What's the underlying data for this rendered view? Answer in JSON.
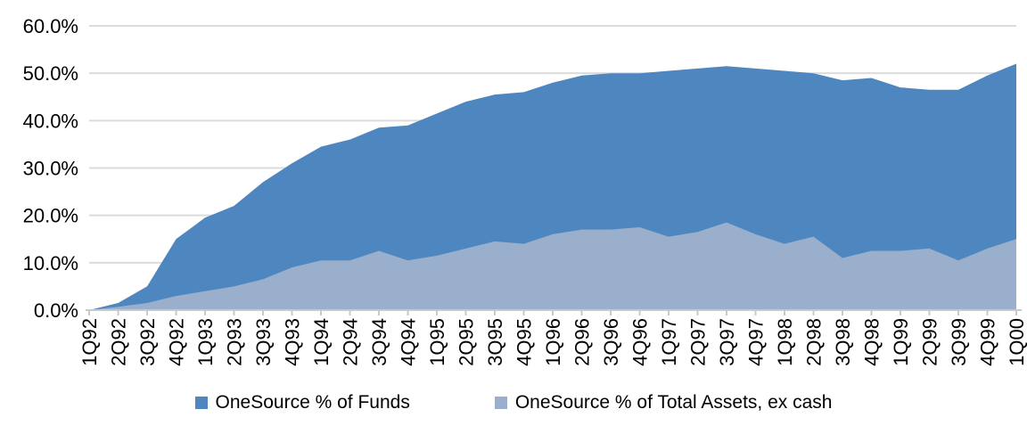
{
  "chart_data": {
    "type": "area",
    "categories": [
      "1Q92",
      "2Q92",
      "3Q92",
      "4Q92",
      "1Q93",
      "2Q93",
      "3Q93",
      "4Q93",
      "1Q94",
      "2Q94",
      "3Q94",
      "4Q94",
      "1Q95",
      "2Q95",
      "3Q95",
      "4Q95",
      "1Q96",
      "2Q96",
      "3Q96",
      "4Q96",
      "1Q97",
      "2Q97",
      "3Q97",
      "4Q97",
      "1Q98",
      "2Q98",
      "3Q98",
      "4Q98",
      "1Q99",
      "2Q99",
      "3Q99",
      "4Q99",
      "1Q00"
    ],
    "series": [
      {
        "name": "OneSource % of Funds",
        "color": "#4E87BF",
        "values": [
          0,
          1.5,
          5,
          15,
          19.5,
          22,
          27,
          31,
          34.5,
          36,
          38.5,
          39,
          41.5,
          44,
          45.5,
          46,
          48,
          49.5,
          50,
          50,
          50.5,
          51,
          51.5,
          51,
          50.5,
          50,
          48.5,
          49,
          47,
          46.5,
          46.5,
          49.5,
          52
        ]
      },
      {
        "name": "OneSource % of Total Assets, ex cash",
        "color": "#99AFCB",
        "values": [
          0,
          0.7,
          1.5,
          3,
          4,
          5,
          6.5,
          9,
          10.5,
          10.5,
          12.5,
          10.5,
          11.5,
          13,
          14.5,
          14,
          16,
          17,
          17,
          17.5,
          15.5,
          16.5,
          18.5,
          16,
          14,
          15.5,
          11,
          12.5,
          12.5,
          13,
          10.5,
          13,
          15
        ]
      }
    ],
    "ylim": [
      0,
      60
    ],
    "ytick_step": 10,
    "ytick_labels": [
      "0.0%",
      "10.0%",
      "20.0%",
      "30.0%",
      "40.0%",
      "50.0%",
      "60.0%"
    ],
    "grid": "horizontal",
    "legend_position": "bottom",
    "overlap_mode": "overlay",
    "colors": {
      "gridline": "#DBDBDB",
      "axis": "#C9C9C9",
      "text": "#000000",
      "background": "#FFFFFF"
    }
  }
}
